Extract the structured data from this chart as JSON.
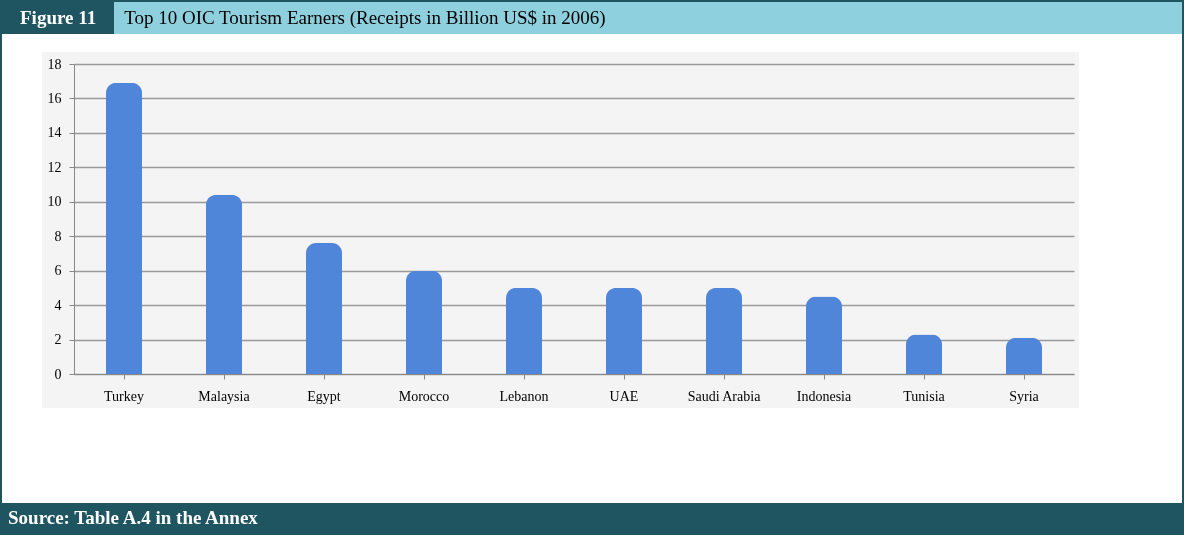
{
  "chart_data": {
    "type": "bar",
    "title": "Top 10 OIC Tourism Earners (Receipts in Billion US$ in 2006)",
    "annotations": [
      "Figure 11",
      "Source: Table A.4 in the Annex"
    ],
    "categories": [
      "Turkey",
      "Malaysia",
      "Egypt",
      "Morocco",
      "Lebanon",
      "UAE",
      "Saudi Arabia",
      "Indonesia",
      "Tunisia",
      "Syria"
    ],
    "values": [
      16.9,
      10.4,
      7.6,
      6.0,
      5.0,
      5.0,
      5.0,
      4.5,
      2.3,
      2.1
    ],
    "color": "#4f86d9",
    "ylim": [
      0,
      18
    ],
    "yticks": [
      0,
      2,
      4,
      6,
      8,
      10,
      12,
      14,
      16,
      18
    ],
    "grid": "y"
  }
}
